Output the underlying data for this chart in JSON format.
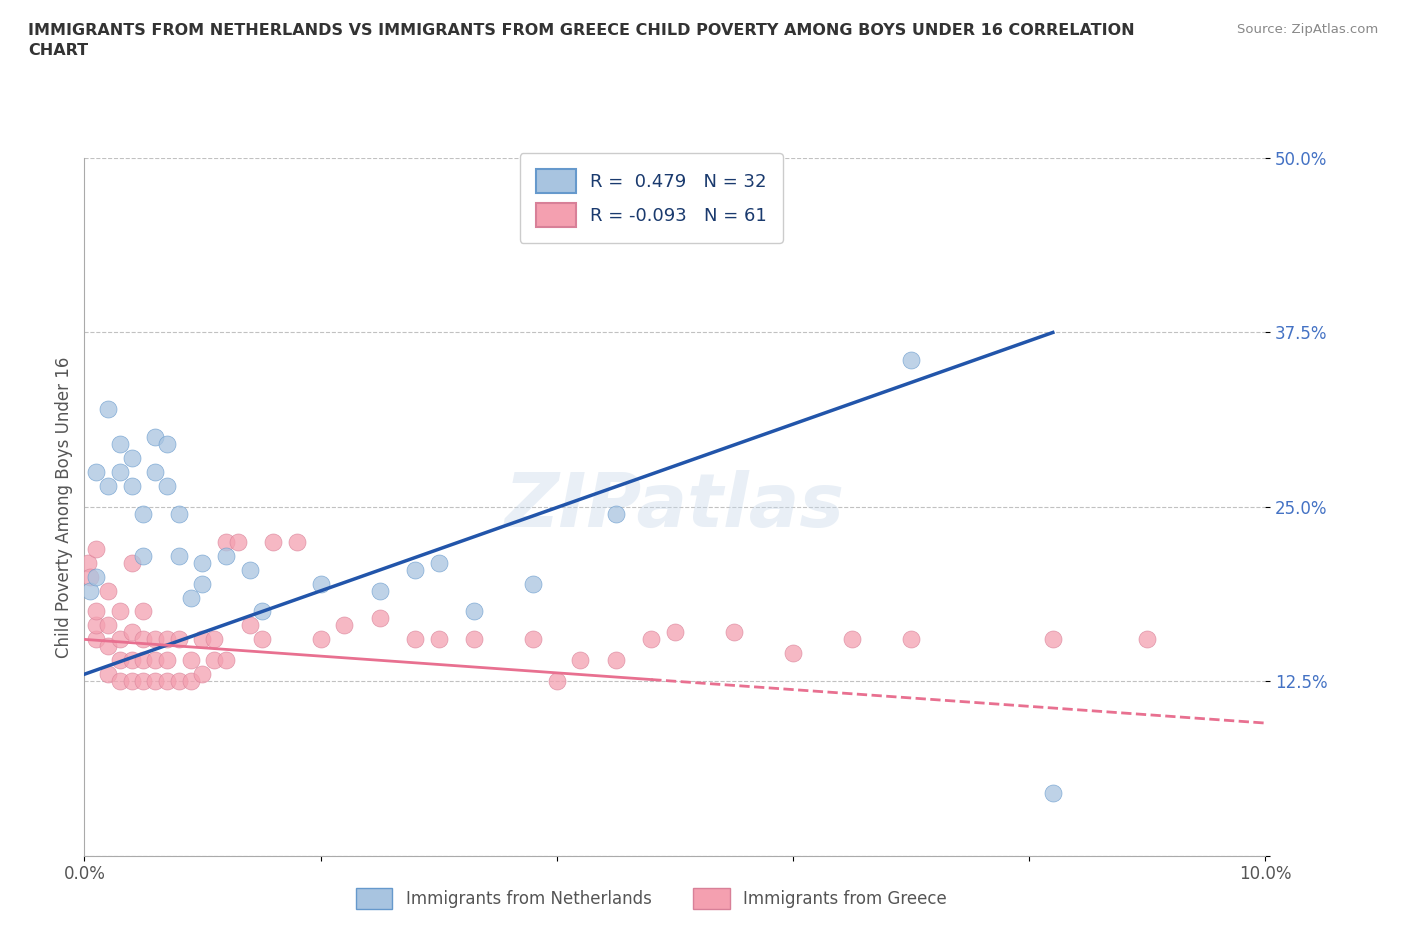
{
  "title": "IMMIGRANTS FROM NETHERLANDS VS IMMIGRANTS FROM GREECE CHILD POVERTY AMONG BOYS UNDER 16 CORRELATION\nCHART",
  "source_text": "Source: ZipAtlas.com",
  "ylabel": "Child Poverty Among Boys Under 16",
  "xlim": [
    0.0,
    0.1
  ],
  "ylim": [
    0.0,
    0.5
  ],
  "xticks": [
    0.0,
    0.02,
    0.04,
    0.06,
    0.08,
    0.1
  ],
  "xticklabels": [
    "0.0%",
    "",
    "",
    "",
    "",
    "10.0%"
  ],
  "yticks": [
    0.0,
    0.125,
    0.25,
    0.375,
    0.5
  ],
  "yticklabels": [
    "",
    "12.5%",
    "25.0%",
    "37.5%",
    "50.0%"
  ],
  "netherlands_color": "#a8c4e0",
  "greece_color": "#f4a0b0",
  "netherlands_line_color": "#2255aa",
  "greece_line_color": "#e87090",
  "netherlands_R": 0.479,
  "netherlands_N": 32,
  "greece_R": -0.093,
  "greece_N": 61,
  "watermark": "ZIPatlas",
  "nl_trend_x0": 0.0,
  "nl_trend_y0": 0.13,
  "nl_trend_x1": 0.082,
  "nl_trend_y1": 0.375,
  "gr_trend_x0": 0.0,
  "gr_trend_y0": 0.155,
  "gr_trend_x1": 0.1,
  "gr_trend_y1": 0.095,
  "netherlands_scatter_x": [
    0.0005,
    0.001,
    0.001,
    0.002,
    0.002,
    0.003,
    0.003,
    0.004,
    0.004,
    0.005,
    0.005,
    0.006,
    0.006,
    0.007,
    0.007,
    0.008,
    0.008,
    0.009,
    0.01,
    0.01,
    0.012,
    0.014,
    0.015,
    0.02,
    0.025,
    0.028,
    0.03,
    0.033,
    0.038,
    0.045,
    0.07,
    0.082
  ],
  "netherlands_scatter_y": [
    0.19,
    0.2,
    0.275,
    0.265,
    0.32,
    0.275,
    0.295,
    0.265,
    0.285,
    0.215,
    0.245,
    0.275,
    0.3,
    0.265,
    0.295,
    0.215,
    0.245,
    0.185,
    0.195,
    0.21,
    0.215,
    0.205,
    0.175,
    0.195,
    0.19,
    0.205,
    0.21,
    0.175,
    0.195,
    0.245,
    0.355,
    0.045
  ],
  "greece_scatter_x": [
    0.0003,
    0.0005,
    0.001,
    0.001,
    0.001,
    0.001,
    0.002,
    0.002,
    0.002,
    0.002,
    0.003,
    0.003,
    0.003,
    0.003,
    0.004,
    0.004,
    0.004,
    0.004,
    0.005,
    0.005,
    0.005,
    0.005,
    0.006,
    0.006,
    0.006,
    0.007,
    0.007,
    0.007,
    0.008,
    0.008,
    0.009,
    0.009,
    0.01,
    0.01,
    0.011,
    0.011,
    0.012,
    0.012,
    0.013,
    0.014,
    0.015,
    0.016,
    0.018,
    0.02,
    0.022,
    0.025,
    0.028,
    0.03,
    0.033,
    0.038,
    0.04,
    0.042,
    0.045,
    0.048,
    0.05,
    0.055,
    0.06,
    0.065,
    0.07,
    0.082,
    0.09
  ],
  "greece_scatter_y": [
    0.21,
    0.2,
    0.155,
    0.165,
    0.175,
    0.22,
    0.13,
    0.15,
    0.165,
    0.19,
    0.125,
    0.14,
    0.155,
    0.175,
    0.125,
    0.14,
    0.16,
    0.21,
    0.125,
    0.14,
    0.155,
    0.175,
    0.125,
    0.14,
    0.155,
    0.125,
    0.14,
    0.155,
    0.125,
    0.155,
    0.125,
    0.14,
    0.13,
    0.155,
    0.14,
    0.155,
    0.14,
    0.225,
    0.225,
    0.165,
    0.155,
    0.225,
    0.225,
    0.155,
    0.165,
    0.17,
    0.155,
    0.155,
    0.155,
    0.155,
    0.125,
    0.14,
    0.14,
    0.155,
    0.16,
    0.16,
    0.145,
    0.155,
    0.155,
    0.155,
    0.155
  ],
  "legend_netherlands_label": "R =  0.479   N = 32",
  "legend_greece_label": "R = -0.093   N = 61",
  "legend_netherlands_fill": "#a8c4e0",
  "legend_greece_fill": "#f4a0b0",
  "bottom_legend_netherlands": "Immigrants from Netherlands",
  "bottom_legend_greece": "Immigrants from Greece"
}
